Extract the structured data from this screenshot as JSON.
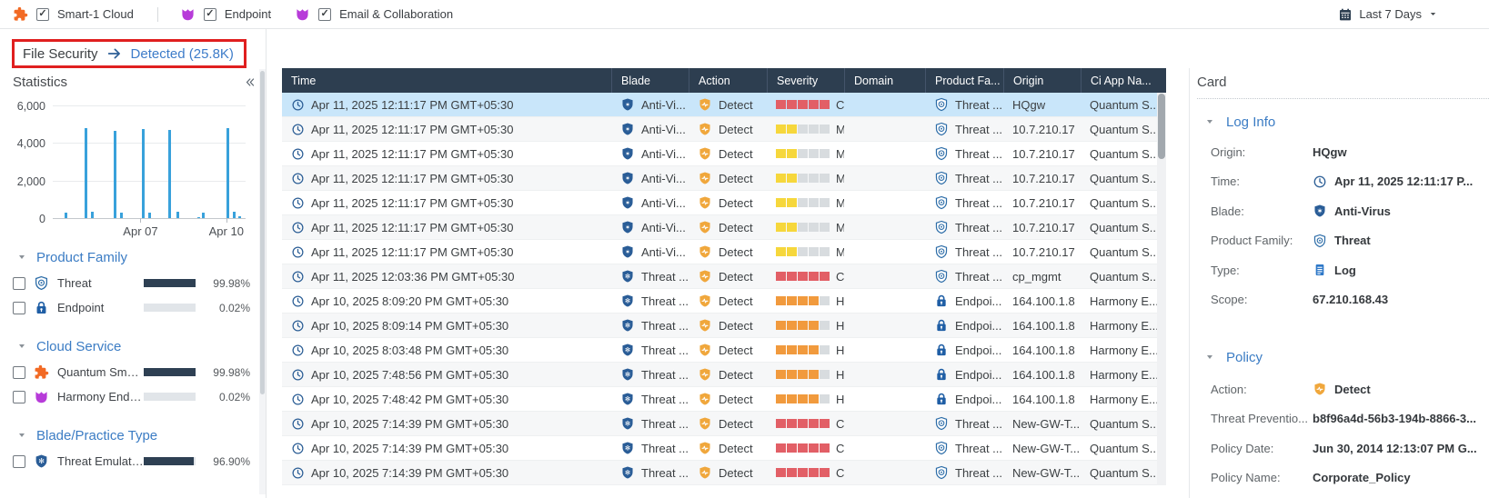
{
  "topbar": {
    "services": [
      {
        "label": "Smart-1 Cloud",
        "checked": true,
        "icon": "puzzle"
      },
      {
        "label": "Endpoint",
        "checked": true,
        "icon": "tulip"
      },
      {
        "label": "Email & Collaboration",
        "checked": true,
        "icon": "tulip"
      }
    ],
    "time_range": "Last 7 Days"
  },
  "breadcrumb": {
    "source": "File Security",
    "target": "Detected (25.8K)"
  },
  "sidebar": {
    "title": "Statistics",
    "chart_data": {
      "type": "bar",
      "title": "Statistics",
      "ylim": [
        0,
        6000
      ],
      "yticks": [
        0,
        2000,
        4000,
        6000
      ],
      "ytick_labels": [
        "0",
        "2,000",
        "4,000",
        "6,000"
      ],
      "xticks": [
        {
          "label": "Apr 07",
          "pos": 0.455
        },
        {
          "label": "Apr 10",
          "pos": 0.9
        }
      ],
      "bar_color": "#38a1db",
      "bars": [
        {
          "pos": 0.06,
          "value": 300
        },
        {
          "pos": 0.165,
          "value": 4800
        },
        {
          "pos": 0.2,
          "value": 350
        },
        {
          "pos": 0.315,
          "value": 4650
        },
        {
          "pos": 0.35,
          "value": 300
        },
        {
          "pos": 0.46,
          "value": 4750
        },
        {
          "pos": 0.495,
          "value": 300
        },
        {
          "pos": 0.6,
          "value": 4700
        },
        {
          "pos": 0.64,
          "value": 350
        },
        {
          "pos": 0.75,
          "value": 60
        },
        {
          "pos": 0.775,
          "value": 280
        },
        {
          "pos": 0.9,
          "value": 4800
        },
        {
          "pos": 0.935,
          "value": 350
        },
        {
          "pos": 0.962,
          "value": 80
        }
      ]
    },
    "sections": [
      {
        "title": "Product Family",
        "items": [
          {
            "label": "Threat",
            "icon": "threat",
            "percent": "99.98%",
            "fill": 1.0
          },
          {
            "label": "Endpoint",
            "icon": "lock",
            "percent": "0.02%",
            "fill": 0.0
          }
        ]
      },
      {
        "title": "Cloud Service",
        "items": [
          {
            "label": "Quantum Smart-1 ...",
            "icon": "puzzle",
            "percent": "99.98%",
            "fill": 1.0
          },
          {
            "label": "Harmony Endpoint",
            "icon": "tulip",
            "percent": "0.02%",
            "fill": 0.0
          }
        ]
      },
      {
        "title": "Blade/Practice Type",
        "items": [
          {
            "label": "Threat Emulation",
            "icon": "emulation",
            "percent": "96.90%",
            "fill": 0.969
          }
        ]
      }
    ]
  },
  "table": {
    "columns": [
      "Time",
      "Blade",
      "Action",
      "Severity",
      "Domain",
      "Product Fa...",
      "Origin",
      "Ci App Na..."
    ],
    "severity_levels": {
      "critical": {
        "filled": 5,
        "color": "#e25f66"
      },
      "high": {
        "filled": 4,
        "color": "#f19a3d"
      },
      "medium": {
        "filled": 2,
        "color": "#f6d73c"
      }
    },
    "segment_empty_color": "#d8dcdf",
    "rows": [
      {
        "time": "Apr 11, 2025 12:11:17 PM GMT+05:30",
        "blade": "Anti-Vi...",
        "blade_icon": "antivirus",
        "action": "Detect",
        "severity": "critical",
        "severity_label": "Cr...",
        "domain": "",
        "product": "Threat ...",
        "product_icon": "threat",
        "origin": "HQgw",
        "ci_app": "Quantum S...",
        "selected": true
      },
      {
        "time": "Apr 11, 2025 12:11:17 PM GMT+05:30",
        "blade": "Anti-Vi...",
        "blade_icon": "antivirus",
        "action": "Detect",
        "severity": "medium",
        "severity_label": "M...",
        "domain": "",
        "product": "Threat ...",
        "product_icon": "threat",
        "origin": "10.7.210.17",
        "ci_app": "Quantum S...",
        "selected": false
      },
      {
        "time": "Apr 11, 2025 12:11:17 PM GMT+05:30",
        "blade": "Anti-Vi...",
        "blade_icon": "antivirus",
        "action": "Detect",
        "severity": "medium",
        "severity_label": "M...",
        "domain": "",
        "product": "Threat ...",
        "product_icon": "threat",
        "origin": "10.7.210.17",
        "ci_app": "Quantum S...",
        "selected": false
      },
      {
        "time": "Apr 11, 2025 12:11:17 PM GMT+05:30",
        "blade": "Anti-Vi...",
        "blade_icon": "antivirus",
        "action": "Detect",
        "severity": "medium",
        "severity_label": "M...",
        "domain": "",
        "product": "Threat ...",
        "product_icon": "threat",
        "origin": "10.7.210.17",
        "ci_app": "Quantum S...",
        "selected": false
      },
      {
        "time": "Apr 11, 2025 12:11:17 PM GMT+05:30",
        "blade": "Anti-Vi...",
        "blade_icon": "antivirus",
        "action": "Detect",
        "severity": "medium",
        "severity_label": "M...",
        "domain": "",
        "product": "Threat ...",
        "product_icon": "threat",
        "origin": "10.7.210.17",
        "ci_app": "Quantum S...",
        "selected": false
      },
      {
        "time": "Apr 11, 2025 12:11:17 PM GMT+05:30",
        "blade": "Anti-Vi...",
        "blade_icon": "antivirus",
        "action": "Detect",
        "severity": "medium",
        "severity_label": "M...",
        "domain": "",
        "product": "Threat ...",
        "product_icon": "threat",
        "origin": "10.7.210.17",
        "ci_app": "Quantum S...",
        "selected": false
      },
      {
        "time": "Apr 11, 2025 12:11:17 PM GMT+05:30",
        "blade": "Anti-Vi...",
        "blade_icon": "antivirus",
        "action": "Detect",
        "severity": "medium",
        "severity_label": "M...",
        "domain": "",
        "product": "Threat ...",
        "product_icon": "threat",
        "origin": "10.7.210.17",
        "ci_app": "Quantum S...",
        "selected": false
      },
      {
        "time": "Apr 11, 2025 12:03:36 PM GMT+05:30",
        "blade": "Threat ...",
        "blade_icon": "emulation",
        "action": "Detect",
        "severity": "critical",
        "severity_label": "Cr...",
        "domain": "",
        "product": "Threat ...",
        "product_icon": "threat",
        "origin": "cp_mgmt",
        "ci_app": "Quantum S...",
        "selected": false
      },
      {
        "time": "Apr 10, 2025 8:09:20 PM GMT+05:30",
        "blade": "Threat ...",
        "blade_icon": "emulation",
        "action": "Detect",
        "severity": "high",
        "severity_label": "Hi...",
        "domain": "",
        "product": "Endpoi...",
        "product_icon": "lock",
        "origin": "164.100.1.8",
        "ci_app": "Harmony E...",
        "selected": false
      },
      {
        "time": "Apr 10, 2025 8:09:14 PM GMT+05:30",
        "blade": "Threat ...",
        "blade_icon": "emulation",
        "action": "Detect",
        "severity": "high",
        "severity_label": "Hi...",
        "domain": "",
        "product": "Endpoi...",
        "product_icon": "lock",
        "origin": "164.100.1.8",
        "ci_app": "Harmony E...",
        "selected": false
      },
      {
        "time": "Apr 10, 2025 8:03:48 PM GMT+05:30",
        "blade": "Threat ...",
        "blade_icon": "emulation",
        "action": "Detect",
        "severity": "high",
        "severity_label": "Hi...",
        "domain": "",
        "product": "Endpoi...",
        "product_icon": "lock",
        "origin": "164.100.1.8",
        "ci_app": "Harmony E...",
        "selected": false
      },
      {
        "time": "Apr 10, 2025 7:48:56 PM GMT+05:30",
        "blade": "Threat ...",
        "blade_icon": "emulation",
        "action": "Detect",
        "severity": "high",
        "severity_label": "Hi...",
        "domain": "",
        "product": "Endpoi...",
        "product_icon": "lock",
        "origin": "164.100.1.8",
        "ci_app": "Harmony E...",
        "selected": false
      },
      {
        "time": "Apr 10, 2025 7:48:42 PM GMT+05:30",
        "blade": "Threat ...",
        "blade_icon": "emulation",
        "action": "Detect",
        "severity": "high",
        "severity_label": "Hi...",
        "domain": "",
        "product": "Endpoi...",
        "product_icon": "lock",
        "origin": "164.100.1.8",
        "ci_app": "Harmony E...",
        "selected": false
      },
      {
        "time": "Apr 10, 2025 7:14:39 PM GMT+05:30",
        "blade": "Threat ...",
        "blade_icon": "emulation",
        "action": "Detect",
        "severity": "critical",
        "severity_label": "Cr...",
        "domain": "",
        "product": "Threat ...",
        "product_icon": "threat",
        "origin": "New-GW-T...",
        "ci_app": "Quantum S...",
        "selected": false
      },
      {
        "time": "Apr 10, 2025 7:14:39 PM GMT+05:30",
        "blade": "Threat ...",
        "blade_icon": "emulation",
        "action": "Detect",
        "severity": "critical",
        "severity_label": "Cr...",
        "domain": "",
        "product": "Threat ...",
        "product_icon": "threat",
        "origin": "New-GW-T...",
        "ci_app": "Quantum S...",
        "selected": false
      },
      {
        "time": "Apr 10, 2025 7:14:39 PM GMT+05:30",
        "blade": "Threat ...",
        "blade_icon": "emulation",
        "action": "Detect",
        "severity": "critical",
        "severity_label": "Cr...",
        "domain": "",
        "product": "Threat ...",
        "product_icon": "threat",
        "origin": "New-GW-T...",
        "ci_app": "Quantum S...",
        "selected": false
      }
    ]
  },
  "card": {
    "title": "Card",
    "sections": [
      {
        "title": "Log Info",
        "fields": [
          {
            "label": "Origin:",
            "value": "HQgw",
            "icon": null
          },
          {
            "label": "Time:",
            "value": "Apr 11, 2025 12:11:17 P...",
            "icon": "clock"
          },
          {
            "label": "Blade:",
            "value": "Anti-Virus",
            "icon": "antivirus"
          },
          {
            "label": "Product Family:",
            "value": "Threat",
            "icon": "threat"
          },
          {
            "label": "Type:",
            "value": "Log",
            "icon": "log"
          },
          {
            "label": "Scope:",
            "value": "67.210.168.43",
            "icon": null
          }
        ]
      },
      {
        "title": "Policy",
        "fields": [
          {
            "label": "Action:",
            "value": "Detect",
            "icon": "detect"
          },
          {
            "label": "Threat Preventio...",
            "value": "b8f96a4d-56b3-194b-8866-3...",
            "icon": null
          },
          {
            "label": "Policy Date:",
            "value": "Jun 30, 2014 12:13:07 PM G...",
            "icon": null
          },
          {
            "label": "Policy Name:",
            "value": "Corporate_Policy",
            "icon": null
          }
        ]
      }
    ]
  }
}
